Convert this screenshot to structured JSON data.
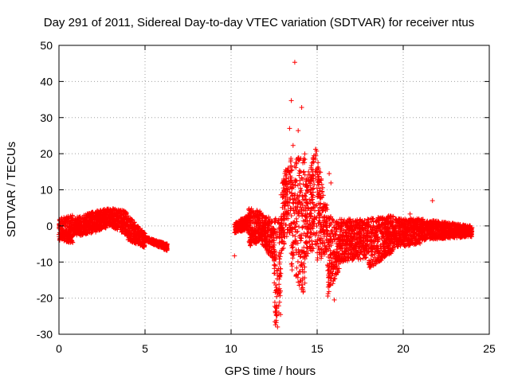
{
  "chart_data": {
    "type": "scatter",
    "title": "Day 291 of 2011, Sidereal Day-to-day VTEC variation (SDTVAR) for receiver ntus",
    "xlabel": "GPS time / hours",
    "ylabel": "SDTVAR / TECUs",
    "xlim": [
      0,
      25
    ],
    "ylim": [
      -30,
      50
    ],
    "xticks": [
      0,
      5,
      10,
      15,
      20,
      25
    ],
    "yticks": [
      -30,
      -20,
      -10,
      0,
      10,
      20,
      30,
      40,
      50
    ],
    "grid": true,
    "marker": "+",
    "color": "#ff0000",
    "series": [
      {
        "name": "SDTVAR",
        "segments": [
          {
            "x0": 0.0,
            "x1": 0.8,
            "lo": [
              -4,
              -5
            ],
            "hi": [
              2,
              3
            ]
          },
          {
            "x0": 0.8,
            "x1": 2.0,
            "lo": [
              -3,
              -2
            ],
            "hi": [
              2,
              4
            ]
          },
          {
            "x0": 2.0,
            "x1": 3.0,
            "lo": [
              -2,
              0
            ],
            "hi": [
              4,
              5
            ]
          },
          {
            "x0": 3.0,
            "x1": 4.0,
            "lo": [
              0,
              -3
            ],
            "hi": [
              5,
              4
            ]
          },
          {
            "x0": 4.0,
            "x1": 5.0,
            "lo": [
              -4,
              -6
            ],
            "hi": [
              3,
              -2
            ]
          },
          {
            "x0": 5.0,
            "x1": 6.3,
            "lo": [
              -4,
              -7
            ],
            "hi": [
              -3,
              -5
            ]
          },
          {
            "x0": 10.2,
            "x1": 11.0,
            "lo": [
              -2,
              -1
            ],
            "hi": [
              1,
              3
            ]
          },
          {
            "x0": 11.0,
            "x1": 11.8,
            "lo": [
              -6,
              -4
            ],
            "hi": [
              5,
              4
            ]
          },
          {
            "x0": 11.8,
            "x1": 12.5,
            "lo": [
              -5,
              -10
            ],
            "hi": [
              3,
              2
            ]
          },
          {
            "x0": 12.5,
            "x1": 12.9,
            "lo": [
              -28,
              -26
            ],
            "hi": [
              2,
              3
            ]
          },
          {
            "x0": 12.9,
            "x1": 13.5,
            "lo": [
              -8,
              -2
            ],
            "hi": [
              12,
              20
            ]
          },
          {
            "x0": 13.5,
            "x1": 14.3,
            "lo": [
              -12,
              -20
            ],
            "hi": [
              18,
              20
            ]
          },
          {
            "x0": 14.3,
            "x1": 15.0,
            "lo": [
              -10,
              -5
            ],
            "hi": [
              12,
              23
            ]
          },
          {
            "x0": 15.0,
            "x1": 15.6,
            "lo": [
              -10,
              -8
            ],
            "hi": [
              20,
              5
            ]
          },
          {
            "x0": 15.6,
            "x1": 16.3,
            "lo": [
              -20,
              -12
            ],
            "hi": [
              4,
              1
            ]
          },
          {
            "x0": 16.3,
            "x1": 18.0,
            "lo": [
              -10,
              -9
            ],
            "hi": [
              2,
              2
            ]
          },
          {
            "x0": 18.0,
            "x1": 19.5,
            "lo": [
              -12,
              -7
            ],
            "hi": [
              2,
              3
            ]
          },
          {
            "x0": 19.5,
            "x1": 21.0,
            "lo": [
              -6,
              -5
            ],
            "hi": [
              2,
              2
            ]
          },
          {
            "x0": 21.0,
            "x1": 24.0,
            "lo": [
              -4,
              -3
            ],
            "hi": [
              2,
              0
            ]
          }
        ],
        "outliers": [
          {
            "x": 13.7,
            "y": 45.3
          },
          {
            "x": 13.5,
            "y": 34.7
          },
          {
            "x": 14.1,
            "y": 32.8
          },
          {
            "x": 13.4,
            "y": 27.0
          },
          {
            "x": 13.9,
            "y": 26.4
          },
          {
            "x": 13.6,
            "y": 22.3
          },
          {
            "x": 15.7,
            "y": 14.5
          },
          {
            "x": 15.8,
            "y": 11.9
          },
          {
            "x": 20.4,
            "y": 3.3
          },
          {
            "x": 21.7,
            "y": 7.0
          },
          {
            "x": 10.2,
            "y": -8.3
          },
          {
            "x": 12.7,
            "y": -28.0
          },
          {
            "x": 16.0,
            "y": -20.5
          }
        ]
      }
    ]
  }
}
